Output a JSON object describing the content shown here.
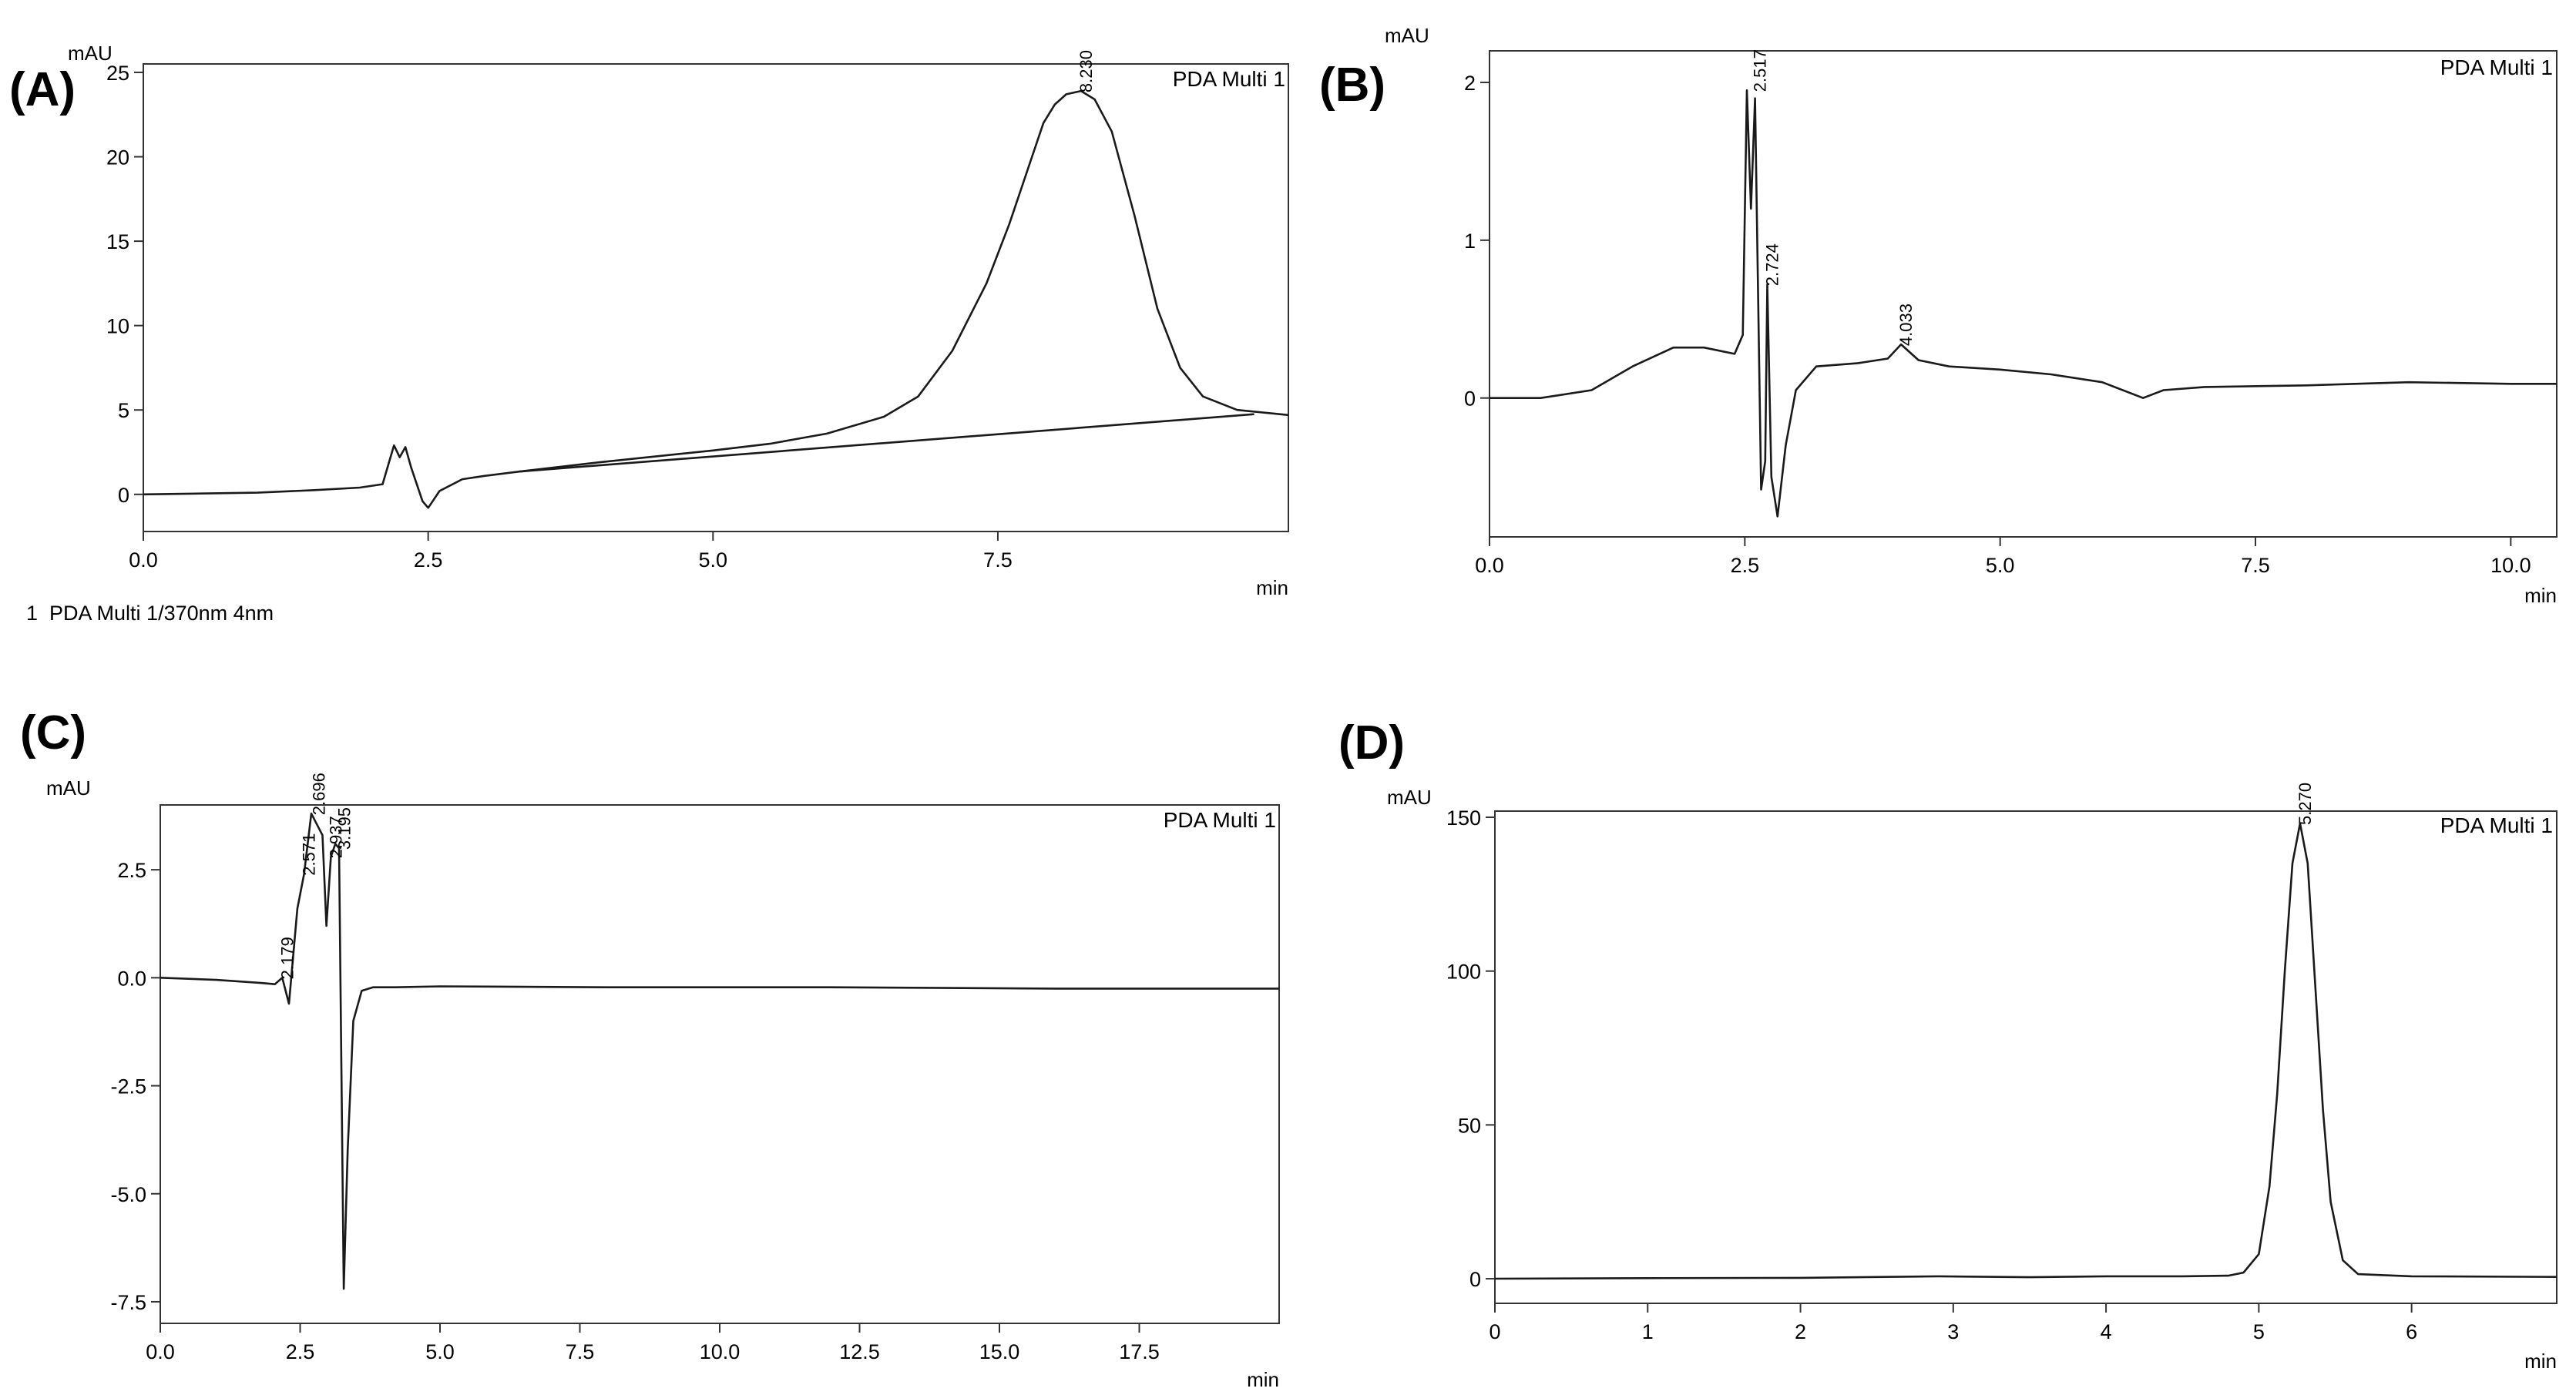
{
  "chart_data": [
    {
      "panel": "(A)",
      "type": "line",
      "ylabel": "mAU",
      "xlabel": "min",
      "legend": "PDA Multi 1",
      "footnote": "1  PDA Multi 1/370nm 4nm",
      "xlim": [
        0,
        10.05
      ],
      "ylim": [
        -2.2,
        25.5
      ],
      "xticks": [
        "0.0",
        "2.5",
        "5.0",
        "7.5"
      ],
      "xtick_values": [
        0,
        2.5,
        5,
        7.5
      ],
      "yticks": [
        "0",
        "5",
        "10",
        "15",
        "20",
        "25"
      ],
      "ytick_values": [
        0,
        5,
        10,
        15,
        20,
        25
      ],
      "series": [
        {
          "name": "PDA Multi 1",
          "x": [
            0,
            0.5,
            1.0,
            1.5,
            1.9,
            2.1,
            2.2,
            2.25,
            2.3,
            2.35,
            2.45,
            2.5,
            2.6,
            2.8,
            3.0,
            3.3,
            4.0,
            5.0,
            5.5,
            6.0,
            6.5,
            6.8,
            7.1,
            7.4,
            7.6,
            7.8,
            7.9,
            8.0,
            8.1,
            8.23,
            8.35,
            8.5,
            8.7,
            8.9,
            9.1,
            9.3,
            9.6,
            10.05
          ],
          "y": [
            0,
            0.05,
            0.1,
            0.25,
            0.4,
            0.6,
            2.9,
            2.2,
            2.8,
            1.6,
            -0.4,
            -0.8,
            0.2,
            0.9,
            1.1,
            1.35,
            1.9,
            2.6,
            3.0,
            3.6,
            4.6,
            5.8,
            8.5,
            12.5,
            16.0,
            20.0,
            22.0,
            23.1,
            23.7,
            23.9,
            23.4,
            21.5,
            16.5,
            11.0,
            7.5,
            5.8,
            5.0,
            4.7
          ]
        },
        {
          "name": "baseline",
          "x": [
            3.3,
            9.75
          ],
          "y": [
            1.35,
            4.75
          ]
        }
      ],
      "annotations": [
        {
          "text": "8.230",
          "x": 8.23,
          "y": 23.9
        }
      ]
    },
    {
      "panel": "(B)",
      "type": "line",
      "ylabel": "mAU",
      "xlabel": "min",
      "legend": "PDA Multi 1",
      "xlim": [
        0,
        10.45
      ],
      "ylim": [
        -0.88,
        2.2
      ],
      "xticks": [
        "0.0",
        "2.5",
        "5.0",
        "7.5",
        "10.0"
      ],
      "xtick_values": [
        0,
        2.5,
        5,
        7.5,
        10
      ],
      "yticks": [
        "0",
        "1",
        "2"
      ],
      "ytick_values": [
        0,
        1,
        2
      ],
      "series": [
        {
          "name": "PDA Multi 1",
          "x": [
            0,
            0.5,
            1.0,
            1.4,
            1.8,
            2.1,
            2.4,
            2.48,
            2.52,
            2.56,
            2.6,
            2.66,
            2.7,
            2.72,
            2.76,
            2.82,
            2.9,
            3.0,
            3.2,
            3.6,
            3.9,
            4.03,
            4.2,
            4.5,
            5.0,
            5.5,
            6.0,
            6.4,
            6.6,
            7.0,
            8.0,
            9.0,
            10.0,
            10.45
          ],
          "y": [
            0.0,
            0.0,
            0.05,
            0.2,
            0.32,
            0.32,
            0.28,
            0.4,
            1.95,
            1.2,
            1.9,
            -0.58,
            -0.4,
            0.72,
            -0.5,
            -0.75,
            -0.3,
            0.05,
            0.2,
            0.22,
            0.25,
            0.34,
            0.24,
            0.2,
            0.18,
            0.15,
            0.1,
            0.0,
            0.05,
            0.07,
            0.08,
            0.1,
            0.09,
            0.09
          ]
        }
      ],
      "annotations": [
        {
          "text": "2.517",
          "x": 2.6,
          "y": 1.95
        },
        {
          "text": "2.724",
          "x": 2.72,
          "y": 0.72
        },
        {
          "text": "4.033",
          "x": 4.03,
          "y": 0.34
        }
      ]
    },
    {
      "panel": "(C)",
      "type": "line",
      "ylabel": "mAU",
      "xlabel": "min",
      "legend": "PDA Multi 1",
      "xlim": [
        0,
        20.0
      ],
      "ylim": [
        -8.0,
        4.0
      ],
      "xticks": [
        "0.0",
        "2.5",
        "5.0",
        "7.5",
        "10.0",
        "12.5",
        "15.0",
        "17.5"
      ],
      "xtick_values": [
        0,
        2.5,
        5,
        7.5,
        10,
        12.5,
        15,
        17.5
      ],
      "yticks": [
        "2.5",
        "0.0",
        "-2.5",
        "-5.0",
        "-7.5"
      ],
      "ytick_values": [
        2.5,
        0,
        -2.5,
        -5,
        -7.5
      ],
      "series": [
        {
          "name": "PDA Multi 1",
          "x": [
            0,
            1.0,
            1.8,
            2.05,
            2.18,
            2.3,
            2.45,
            2.57,
            2.7,
            2.9,
            2.97,
            3.05,
            3.13,
            3.195,
            3.28,
            3.35,
            3.45,
            3.6,
            3.8,
            4.2,
            5.0,
            8.0,
            12.0,
            16.0,
            20.0
          ],
          "y": [
            0,
            -0.05,
            -0.12,
            -0.15,
            0.0,
            -0.6,
            1.6,
            2.4,
            3.8,
            3.3,
            1.2,
            2.8,
            3.1,
            3.0,
            -7.2,
            -4.0,
            -1.0,
            -0.3,
            -0.22,
            -0.22,
            -0.2,
            -0.22,
            -0.22,
            -0.25,
            -0.25
          ]
        }
      ],
      "annotations": [
        {
          "text": "2.179",
          "x": 2.18,
          "y": 0.0
        },
        {
          "text": "2.571",
          "x": 2.57,
          "y": 2.4
        },
        {
          "text": "2.696",
          "x": 2.75,
          "y": 3.8
        },
        {
          "text": "2.937",
          "x": 3.05,
          "y": 2.8
        },
        {
          "text": "3.195",
          "x": 3.2,
          "y": 3.0
        }
      ]
    },
    {
      "panel": "(D)",
      "type": "line",
      "ylabel": "mAU",
      "xlabel": "min",
      "legend": "PDA Multi 1",
      "xlim": [
        0,
        6.95
      ],
      "ylim": [
        -8.0,
        152.0
      ],
      "xticks": [
        "0",
        "1",
        "2",
        "3",
        "4",
        "5",
        "6"
      ],
      "xtick_values": [
        0,
        1,
        2,
        3,
        4,
        5,
        6
      ],
      "yticks": [
        "0",
        "50",
        "100",
        "150"
      ],
      "ytick_values": [
        0,
        50,
        100,
        150
      ],
      "series": [
        {
          "name": "PDA Multi 1",
          "x": [
            0,
            1,
            2,
            2.9,
            3.5,
            4.0,
            4.5,
            4.8,
            4.9,
            5.0,
            5.07,
            5.12,
            5.17,
            5.22,
            5.27,
            5.32,
            5.37,
            5.42,
            5.47,
            5.55,
            5.65,
            6.0,
            6.95
          ],
          "y": [
            0,
            0.2,
            0.3,
            0.8,
            0.5,
            0.8,
            0.8,
            1.0,
            2.0,
            8.0,
            30.0,
            60.0,
            100.0,
            135.0,
            148.0,
            135.0,
            95.0,
            55.0,
            25.0,
            6.0,
            1.5,
            0.8,
            0.6
          ]
        }
      ],
      "annotations": [
        {
          "text": "5.270",
          "x": 5.27,
          "y": 148.0
        }
      ]
    }
  ]
}
